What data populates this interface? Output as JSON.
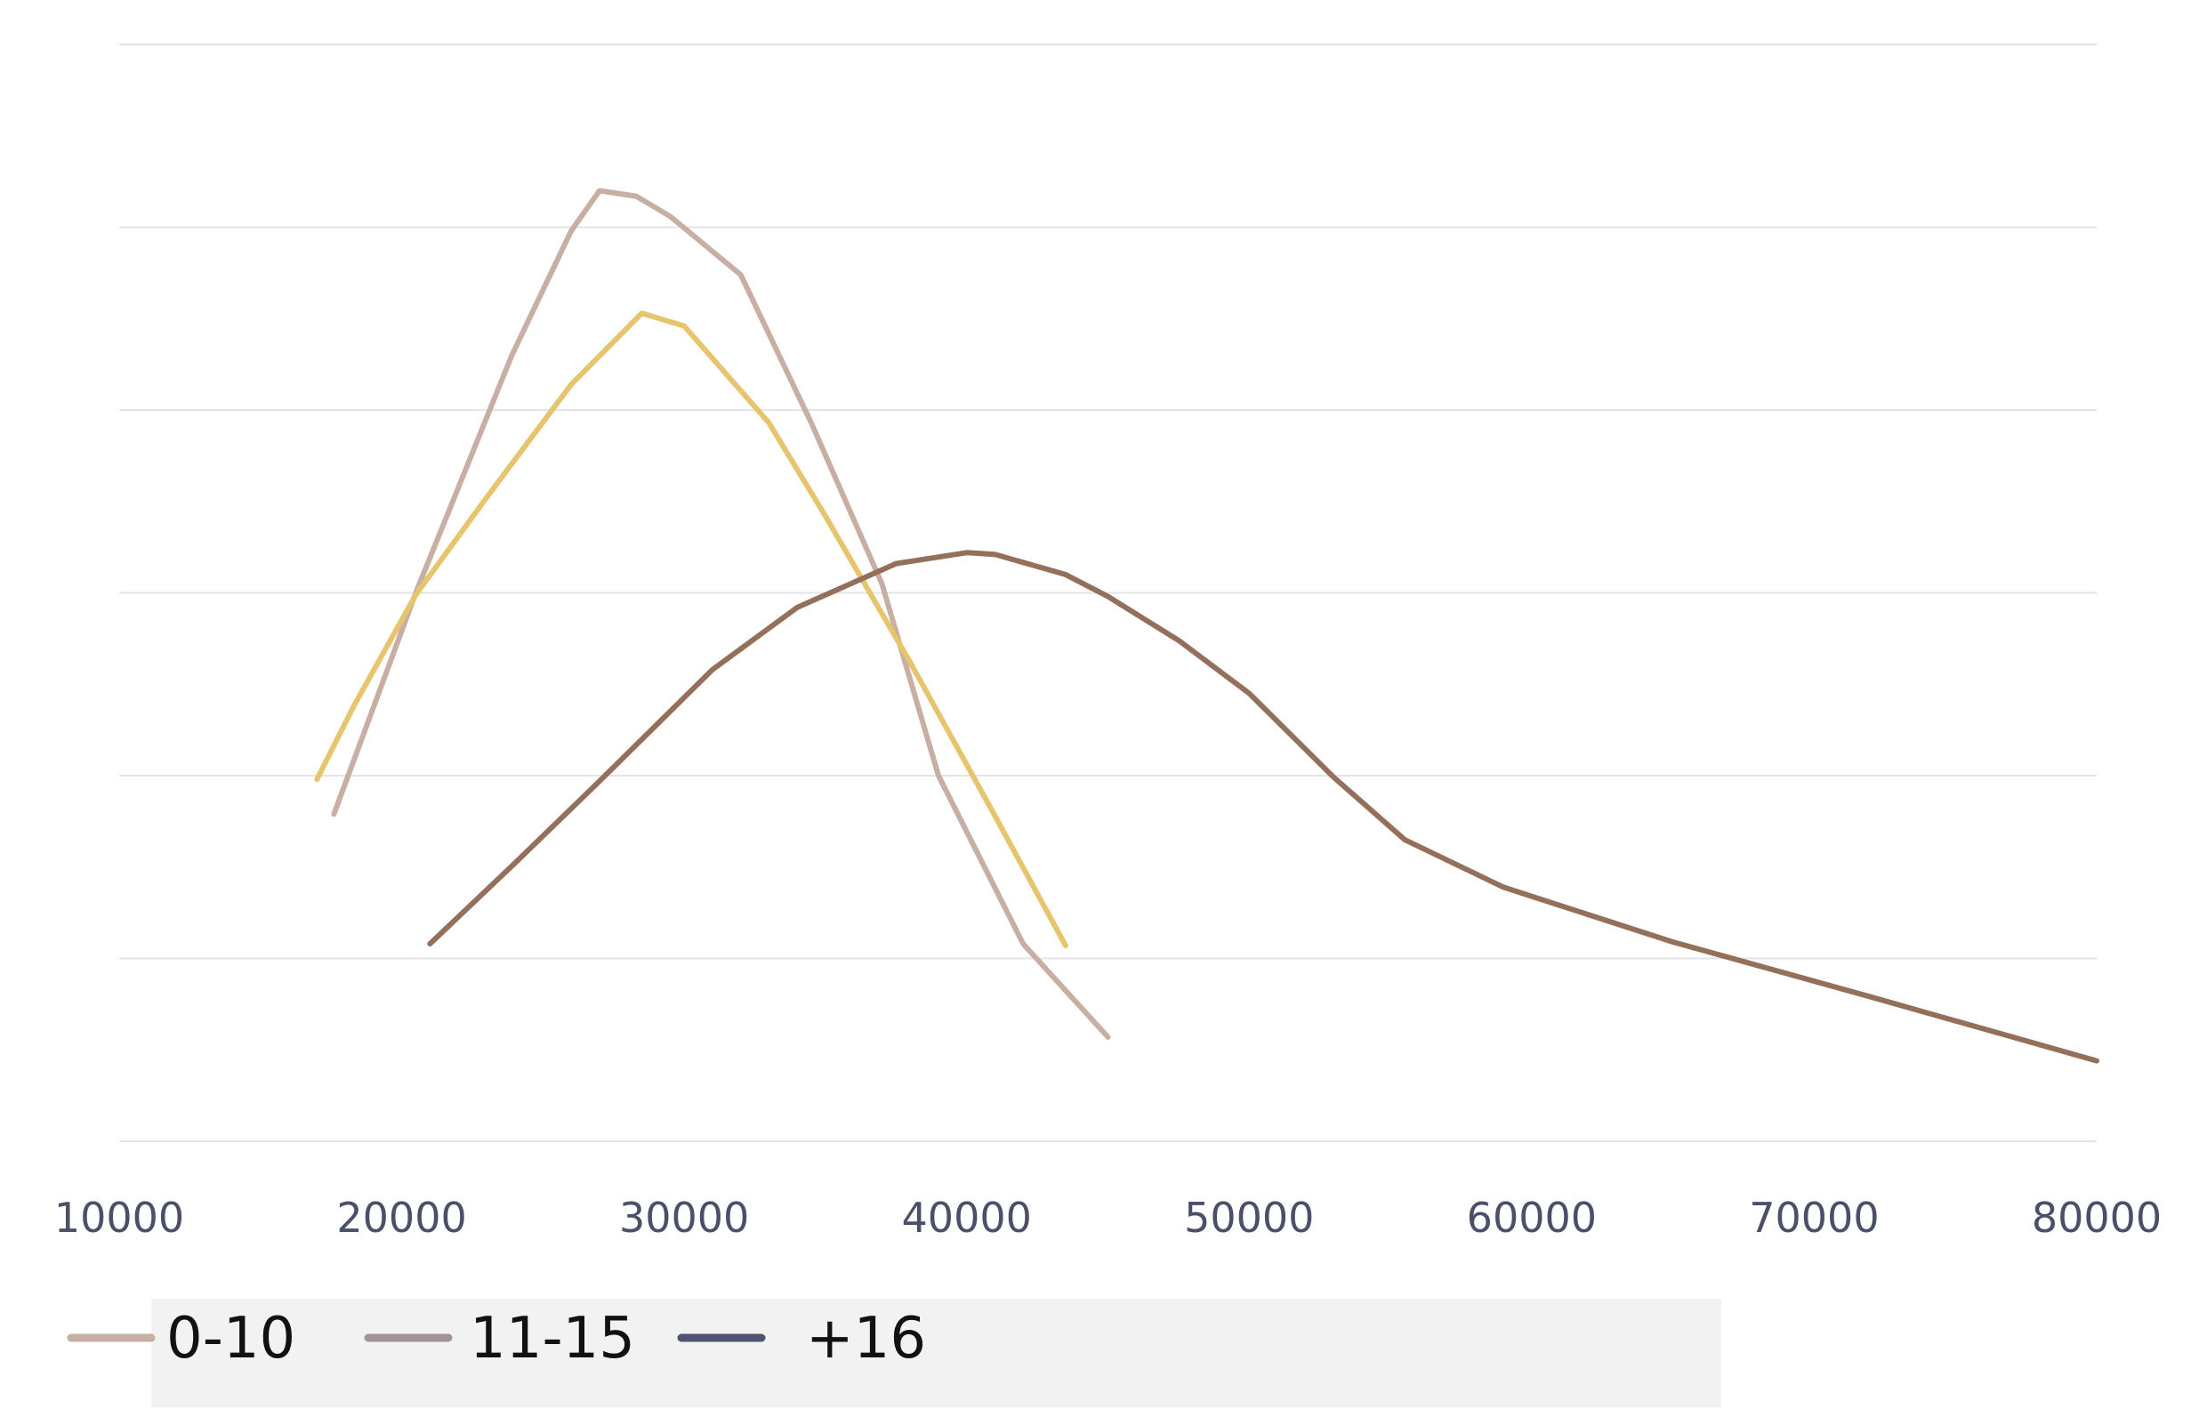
{
  "chart_data": {
    "type": "line",
    "title": "",
    "xlabel": "",
    "ylabel": "",
    "xlim": [
      10000,
      80000
    ],
    "ylim": [
      0,
      6
    ],
    "x_ticks": [
      "10000",
      "20000",
      "30000",
      "40000",
      "50000",
      "60000",
      "70000",
      "80000"
    ],
    "grid": "horizontal",
    "legend_placement": "bottom-left",
    "series": [
      {
        "name": "0-10",
        "color": "#c8aea3",
        "points": [
          [
            17600,
            1.79
          ],
          [
            20500,
            3.0
          ],
          [
            23900,
            4.3
          ],
          [
            26000,
            4.98
          ],
          [
            27000,
            5.2
          ],
          [
            28300,
            5.17
          ],
          [
            29500,
            5.06
          ],
          [
            32000,
            4.74
          ],
          [
            34500,
            3.93
          ],
          [
            37000,
            3.05
          ],
          [
            39000,
            2.0
          ],
          [
            42000,
            1.08
          ],
          [
            45000,
            0.57
          ]
        ]
      },
      {
        "name": "11-15",
        "color": "#e6c56e",
        "points": [
          [
            17000,
            1.98
          ],
          [
            18300,
            2.38
          ],
          [
            20500,
            2.99
          ],
          [
            23000,
            3.52
          ],
          [
            26000,
            4.14
          ],
          [
            28500,
            4.53
          ],
          [
            30000,
            4.46
          ],
          [
            33000,
            3.93
          ],
          [
            35000,
            3.42
          ],
          [
            38000,
            2.62
          ],
          [
            41000,
            1.78
          ],
          [
            43500,
            1.07
          ]
        ]
      },
      {
        "name": "+16",
        "color": "#94705b",
        "points": [
          [
            21000,
            1.08
          ],
          [
            24000,
            1.52
          ],
          [
            27000,
            1.97
          ],
          [
            31000,
            2.58
          ],
          [
            34000,
            2.92
          ],
          [
            37500,
            3.16
          ],
          [
            40000,
            3.22
          ],
          [
            41000,
            3.21
          ],
          [
            43500,
            3.1
          ],
          [
            45000,
            2.98
          ],
          [
            47500,
            2.74
          ],
          [
            50000,
            2.45
          ],
          [
            53000,
            1.99
          ],
          [
            55500,
            1.65
          ],
          [
            59000,
            1.39
          ],
          [
            65000,
            1.09
          ],
          [
            72000,
            0.79
          ],
          [
            80000,
            0.44
          ]
        ]
      }
    ],
    "legend": [
      {
        "label": "0-10",
        "color": "#c8aea3"
      },
      {
        "label": "11-15",
        "color": "#a29296"
      },
      {
        "label": "+16",
        "color": "#4e5470"
      }
    ]
  }
}
